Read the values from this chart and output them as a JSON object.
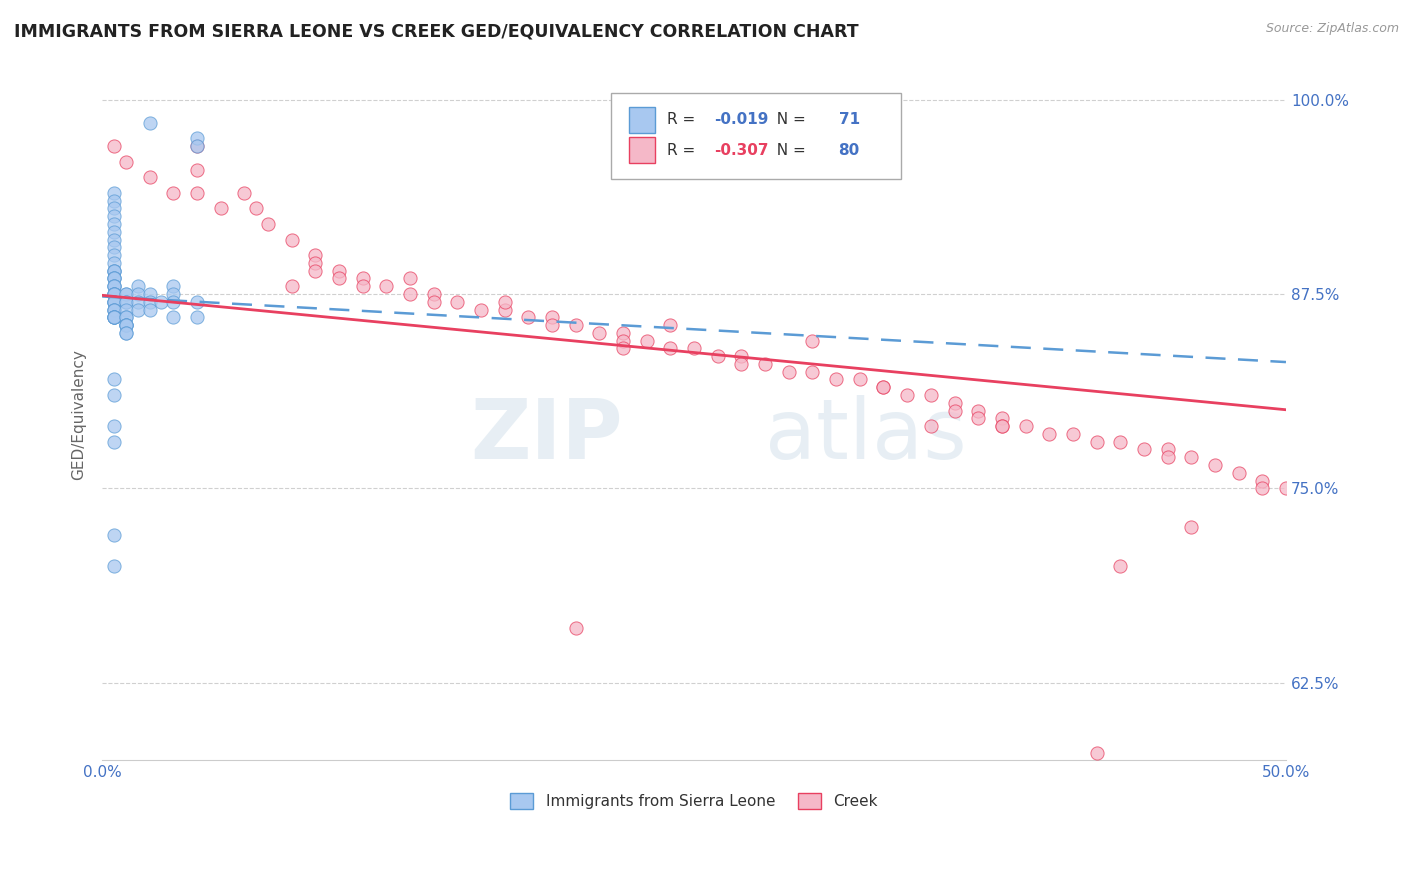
{
  "title": "IMMIGRANTS FROM SIERRA LEONE VS CREEK GED/EQUIVALENCY CORRELATION CHART",
  "source": "Source: ZipAtlas.com",
  "ylabel": "GED/Equivalency",
  "legend_label_1": "Immigrants from Sierra Leone",
  "legend_label_2": "Creek",
  "r1": -0.019,
  "n1": 71,
  "r2": -0.307,
  "n2": 80,
  "xlim": [
    0.0,
    0.5
  ],
  "ylim": [
    0.575,
    1.02
  ],
  "xticks": [
    0.0,
    0.1,
    0.2,
    0.3,
    0.4,
    0.5
  ],
  "yticks": [
    0.625,
    0.75,
    0.875,
    1.0
  ],
  "xticklabels": [
    "0.0%",
    "",
    "",
    "",
    "",
    "50.0%"
  ],
  "yticklabels": [
    "62.5%",
    "75.0%",
    "87.5%",
    "100.0%"
  ],
  "color_blue": "#a8c8f0",
  "color_pink": "#f5b8c8",
  "trendline_blue": "#5b9bd5",
  "trendline_pink": "#e84060",
  "background": "#ffffff",
  "grid_color": "#d0d0d0",
  "watermark_zip": "ZIP",
  "watermark_atlas": "atlas",
  "blue_scatter_x": [
    0.02,
    0.04,
    0.04,
    0.005,
    0.005,
    0.005,
    0.005,
    0.005,
    0.005,
    0.005,
    0.005,
    0.005,
    0.005,
    0.005,
    0.005,
    0.005,
    0.005,
    0.005,
    0.005,
    0.005,
    0.005,
    0.005,
    0.005,
    0.005,
    0.005,
    0.005,
    0.005,
    0.005,
    0.005,
    0.005,
    0.005,
    0.005,
    0.005,
    0.005,
    0.005,
    0.005,
    0.005,
    0.005,
    0.01,
    0.01,
    0.01,
    0.01,
    0.01,
    0.01,
    0.01,
    0.01,
    0.01,
    0.01,
    0.01,
    0.01,
    0.01,
    0.015,
    0.015,
    0.015,
    0.015,
    0.02,
    0.02,
    0.02,
    0.025,
    0.03,
    0.03,
    0.03,
    0.03,
    0.04,
    0.04,
    0.005,
    0.005,
    0.005,
    0.005,
    0.005,
    0.005
  ],
  "blue_scatter_y": [
    0.985,
    0.975,
    0.97,
    0.94,
    0.935,
    0.93,
    0.925,
    0.92,
    0.915,
    0.91,
    0.905,
    0.9,
    0.895,
    0.89,
    0.89,
    0.89,
    0.885,
    0.885,
    0.885,
    0.88,
    0.88,
    0.88,
    0.875,
    0.875,
    0.875,
    0.875,
    0.87,
    0.87,
    0.87,
    0.87,
    0.865,
    0.865,
    0.865,
    0.86,
    0.86,
    0.86,
    0.86,
    0.86,
    0.875,
    0.875,
    0.87,
    0.87,
    0.865,
    0.86,
    0.86,
    0.855,
    0.855,
    0.855,
    0.855,
    0.85,
    0.85,
    0.88,
    0.875,
    0.87,
    0.865,
    0.875,
    0.87,
    0.865,
    0.87,
    0.88,
    0.875,
    0.87,
    0.86,
    0.87,
    0.86,
    0.82,
    0.81,
    0.79,
    0.78,
    0.72,
    0.7
  ],
  "pink_scatter_x": [
    0.005,
    0.01,
    0.02,
    0.03,
    0.04,
    0.04,
    0.04,
    0.05,
    0.06,
    0.065,
    0.07,
    0.08,
    0.09,
    0.09,
    0.09,
    0.1,
    0.1,
    0.11,
    0.11,
    0.12,
    0.13,
    0.14,
    0.14,
    0.15,
    0.16,
    0.17,
    0.18,
    0.19,
    0.19,
    0.2,
    0.21,
    0.22,
    0.22,
    0.23,
    0.24,
    0.25,
    0.26,
    0.27,
    0.27,
    0.28,
    0.29,
    0.3,
    0.31,
    0.32,
    0.33,
    0.33,
    0.34,
    0.35,
    0.36,
    0.36,
    0.37,
    0.37,
    0.38,
    0.38,
    0.39,
    0.4,
    0.41,
    0.42,
    0.43,
    0.44,
    0.45,
    0.45,
    0.46,
    0.47,
    0.48,
    0.49,
    0.49,
    0.5,
    0.42,
    0.2,
    0.08,
    0.35,
    0.38,
    0.46,
    0.13,
    0.17,
    0.24,
    0.3,
    0.43,
    0.22
  ],
  "pink_scatter_y": [
    0.97,
    0.96,
    0.95,
    0.94,
    0.97,
    0.955,
    0.94,
    0.93,
    0.94,
    0.93,
    0.92,
    0.91,
    0.9,
    0.895,
    0.89,
    0.89,
    0.885,
    0.885,
    0.88,
    0.88,
    0.875,
    0.875,
    0.87,
    0.87,
    0.865,
    0.865,
    0.86,
    0.86,
    0.855,
    0.855,
    0.85,
    0.85,
    0.845,
    0.845,
    0.84,
    0.84,
    0.835,
    0.835,
    0.83,
    0.83,
    0.825,
    0.825,
    0.82,
    0.82,
    0.815,
    0.815,
    0.81,
    0.81,
    0.805,
    0.8,
    0.8,
    0.795,
    0.795,
    0.79,
    0.79,
    0.785,
    0.785,
    0.78,
    0.78,
    0.775,
    0.775,
    0.77,
    0.77,
    0.765,
    0.76,
    0.755,
    0.75,
    0.75,
    0.58,
    0.66,
    0.88,
    0.79,
    0.79,
    0.725,
    0.885,
    0.87,
    0.855,
    0.845,
    0.7,
    0.84
  ]
}
